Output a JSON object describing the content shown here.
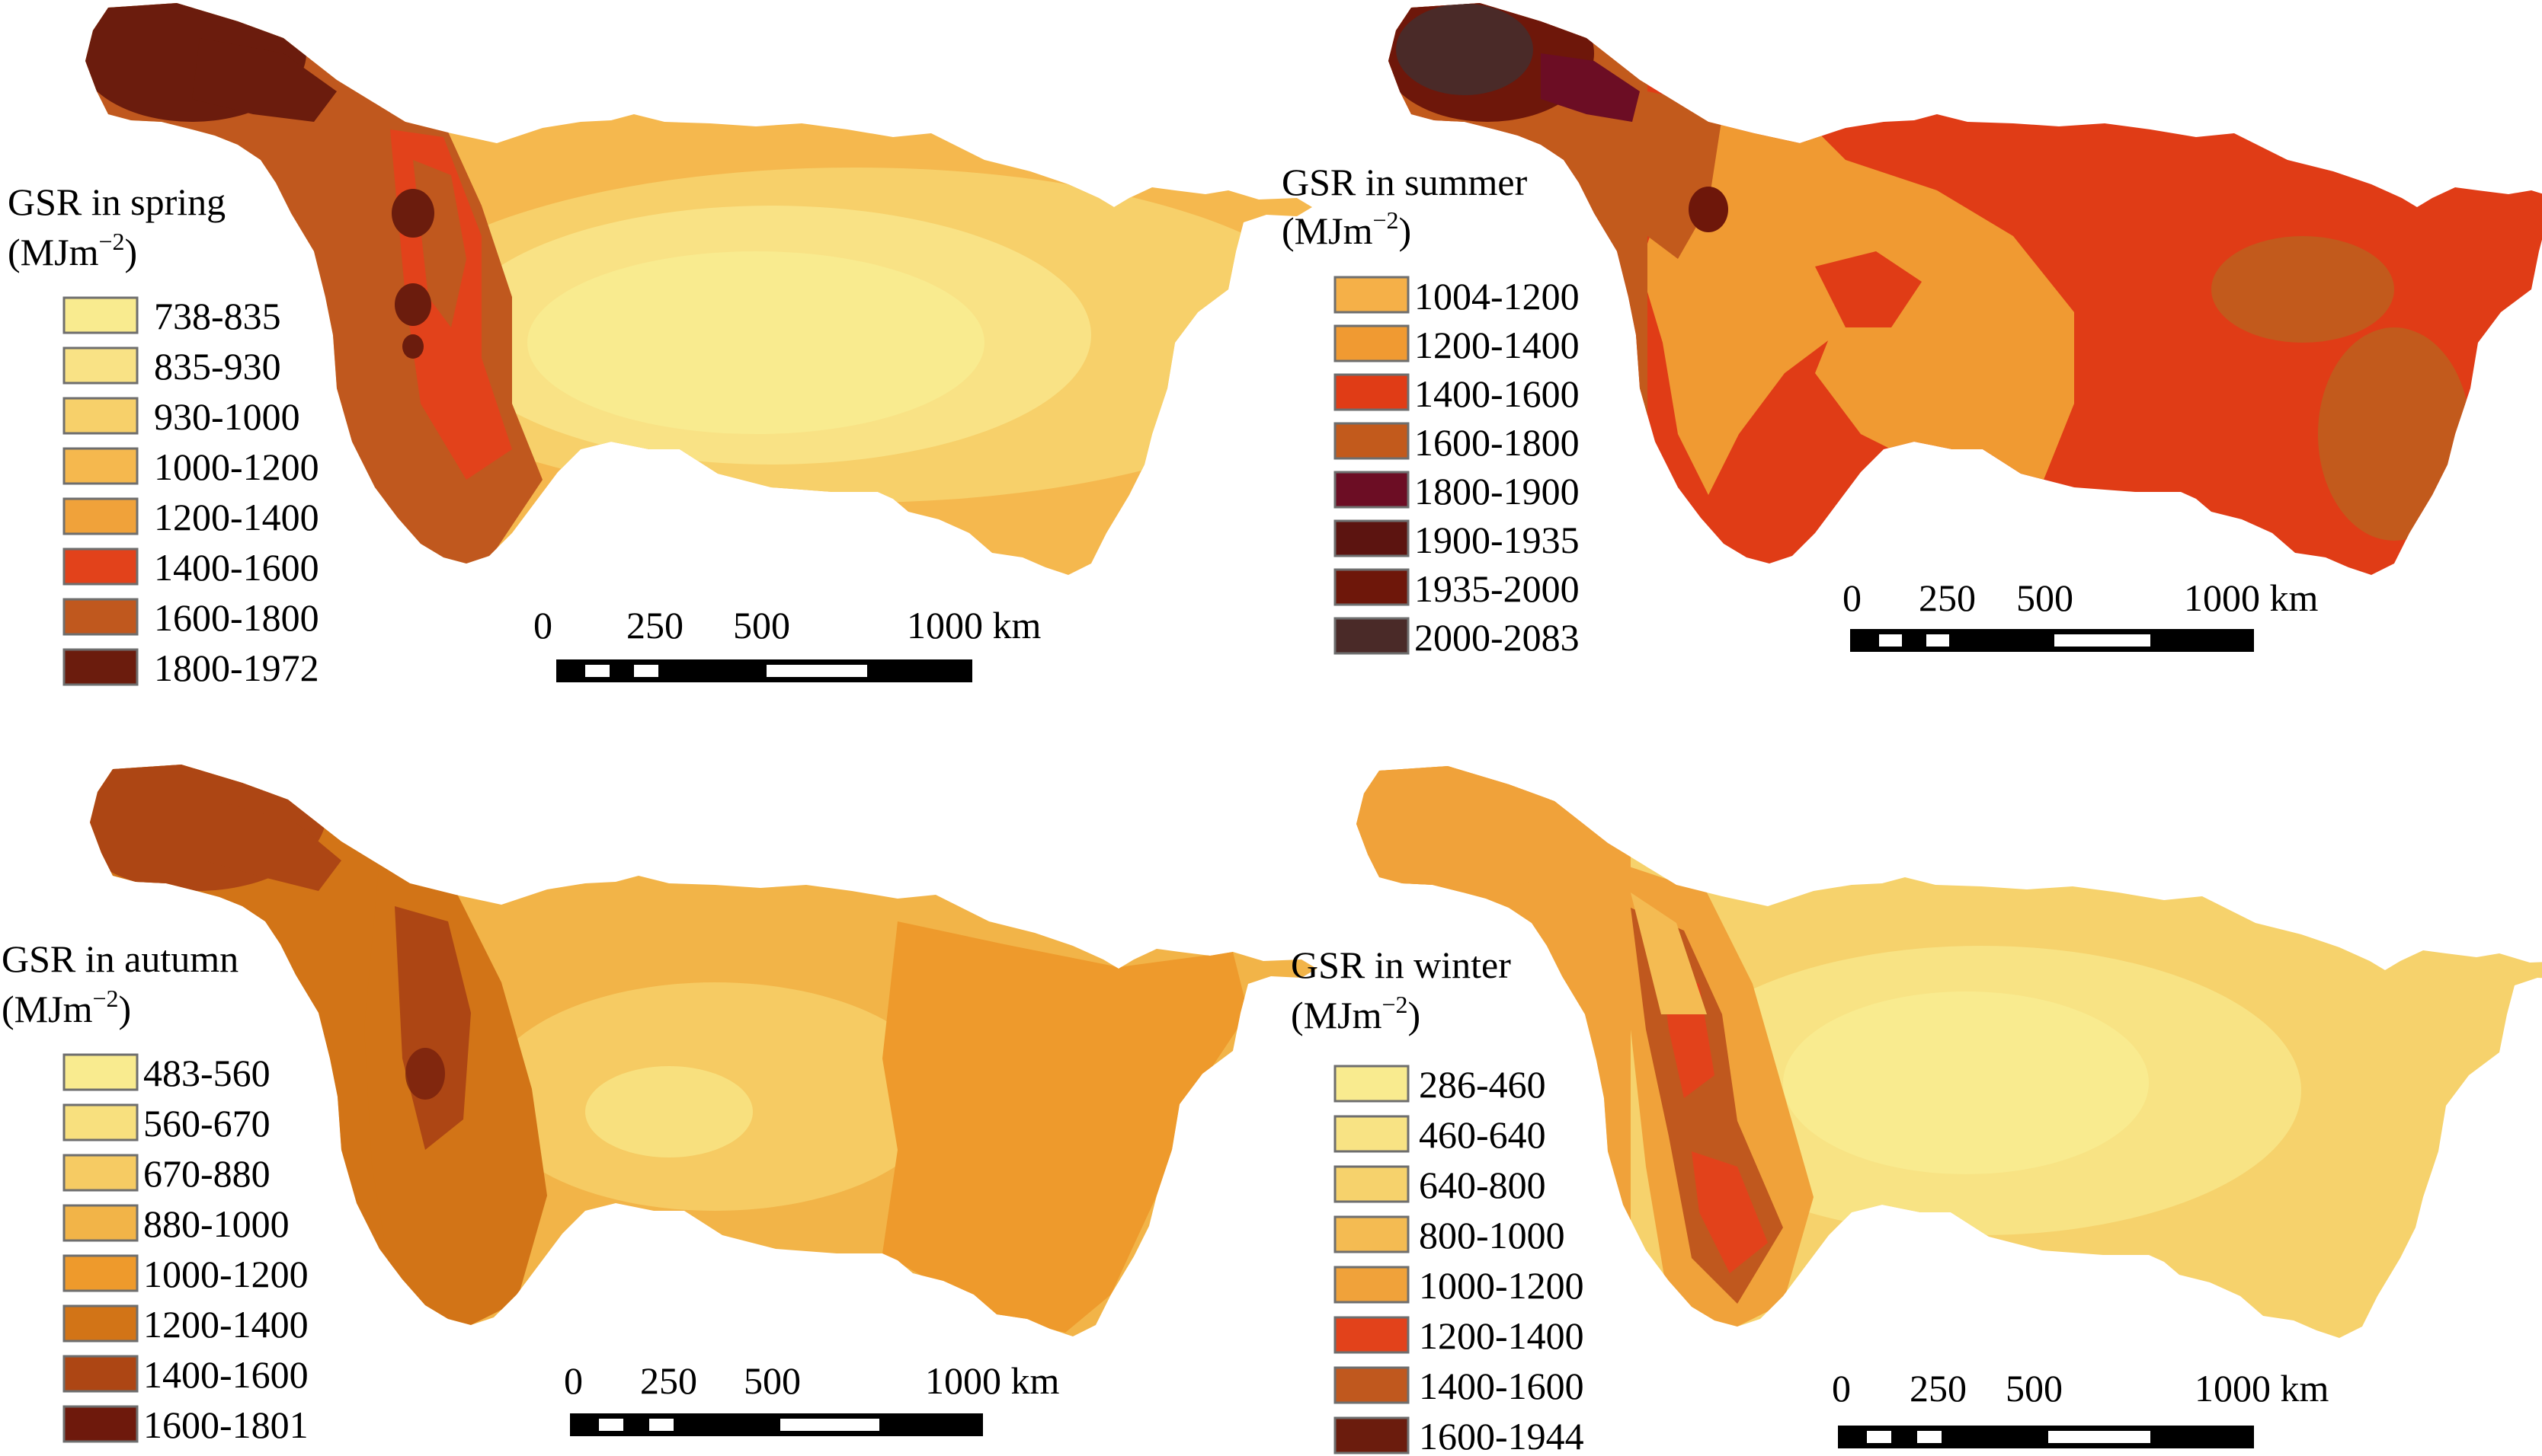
{
  "panels": [
    {
      "id": "spring",
      "title": "GSR in spring",
      "unit_base": "(MJm",
      "unit_sup": "−2",
      "unit_end": ")",
      "legend": [
        {
          "label": "738-835",
          "color": "#f9eb8f"
        },
        {
          "label": "835-930",
          "color": "#f9e285"
        },
        {
          "label": "930-1000",
          "color": "#f7d06a"
        },
        {
          "label": "1000-1200",
          "color": "#f5b84e"
        },
        {
          "label": "1200-1400",
          "color": "#f0a23a"
        },
        {
          "label": "1400-1600",
          "color": "#e2421b"
        },
        {
          "label": "1600-1800",
          "color": "#c0581e"
        },
        {
          "label": "1800-1972",
          "color": "#6b1c0d"
        }
      ],
      "scale": {
        "zero": "0",
        "mid1": "250",
        "mid2": "500",
        "end": "1000 km"
      }
    },
    {
      "id": "summer",
      "title": "GSR in summer",
      "unit_base": "(MJm",
      "unit_sup": "−2",
      "unit_end": ")",
      "legend": [
        {
          "label": "1004-1200",
          "color": "#f5b048"
        },
        {
          "label": "1200-1400",
          "color": "#f09a32"
        },
        {
          "label": "1400-1600",
          "color": "#e03c16"
        },
        {
          "label": "1600-1800",
          "color": "#c25a1c"
        },
        {
          "label": "1800-1900",
          "color": "#6c0d24"
        },
        {
          "label": "1900-1935",
          "color": "#5c1410"
        },
        {
          "label": "1935-2000",
          "color": "#6e170a"
        },
        {
          "label": "2000-2083",
          "color": "#4a2a28"
        }
      ],
      "scale": {
        "zero": "0",
        "mid1": "250",
        "mid2": "500",
        "end": "1000 km"
      }
    },
    {
      "id": "autumn",
      "title": "GSR in autumn",
      "unit_base": "(MJm",
      "unit_sup": "−2",
      "unit_end": ")",
      "legend": [
        {
          "label": "483-560",
          "color": "#f9eb8f"
        },
        {
          "label": "560-670",
          "color": "#f8e07e"
        },
        {
          "label": "670-880",
          "color": "#f6cb63"
        },
        {
          "label": "880-1000",
          "color": "#f2b448"
        },
        {
          "label": "1000-1200",
          "color": "#ee9a2c"
        },
        {
          "label": "1200-1400",
          "color": "#d27417"
        },
        {
          "label": "1400-1600",
          "color": "#ad4614"
        },
        {
          "label": "1600-1801",
          "color": "#6e190c"
        }
      ],
      "scale": {
        "zero": "0",
        "mid1": "250",
        "mid2": "500",
        "end": "1000 km"
      }
    },
    {
      "id": "winter",
      "title": "GSR in winter",
      "unit_base": "(MJm",
      "unit_sup": "−2",
      "unit_end": ")",
      "legend": [
        {
          "label": "286-460",
          "color": "#f9eb8f"
        },
        {
          "label": "460-640",
          "color": "#f8e384"
        },
        {
          "label": "640-800",
          "color": "#f6d26c"
        },
        {
          "label": "800-1000",
          "color": "#f4bb52"
        },
        {
          "label": "1000-1200",
          "color": "#f0a23a"
        },
        {
          "label": "1200-1400",
          "color": "#e2421b"
        },
        {
          "label": "1400-1600",
          "color": "#c0581e"
        },
        {
          "label": "1600-1944",
          "color": "#6b1c0d"
        }
      ],
      "scale": {
        "zero": "0",
        "mid1": "250",
        "mid2": "500",
        "end": "1000 km"
      }
    }
  ]
}
